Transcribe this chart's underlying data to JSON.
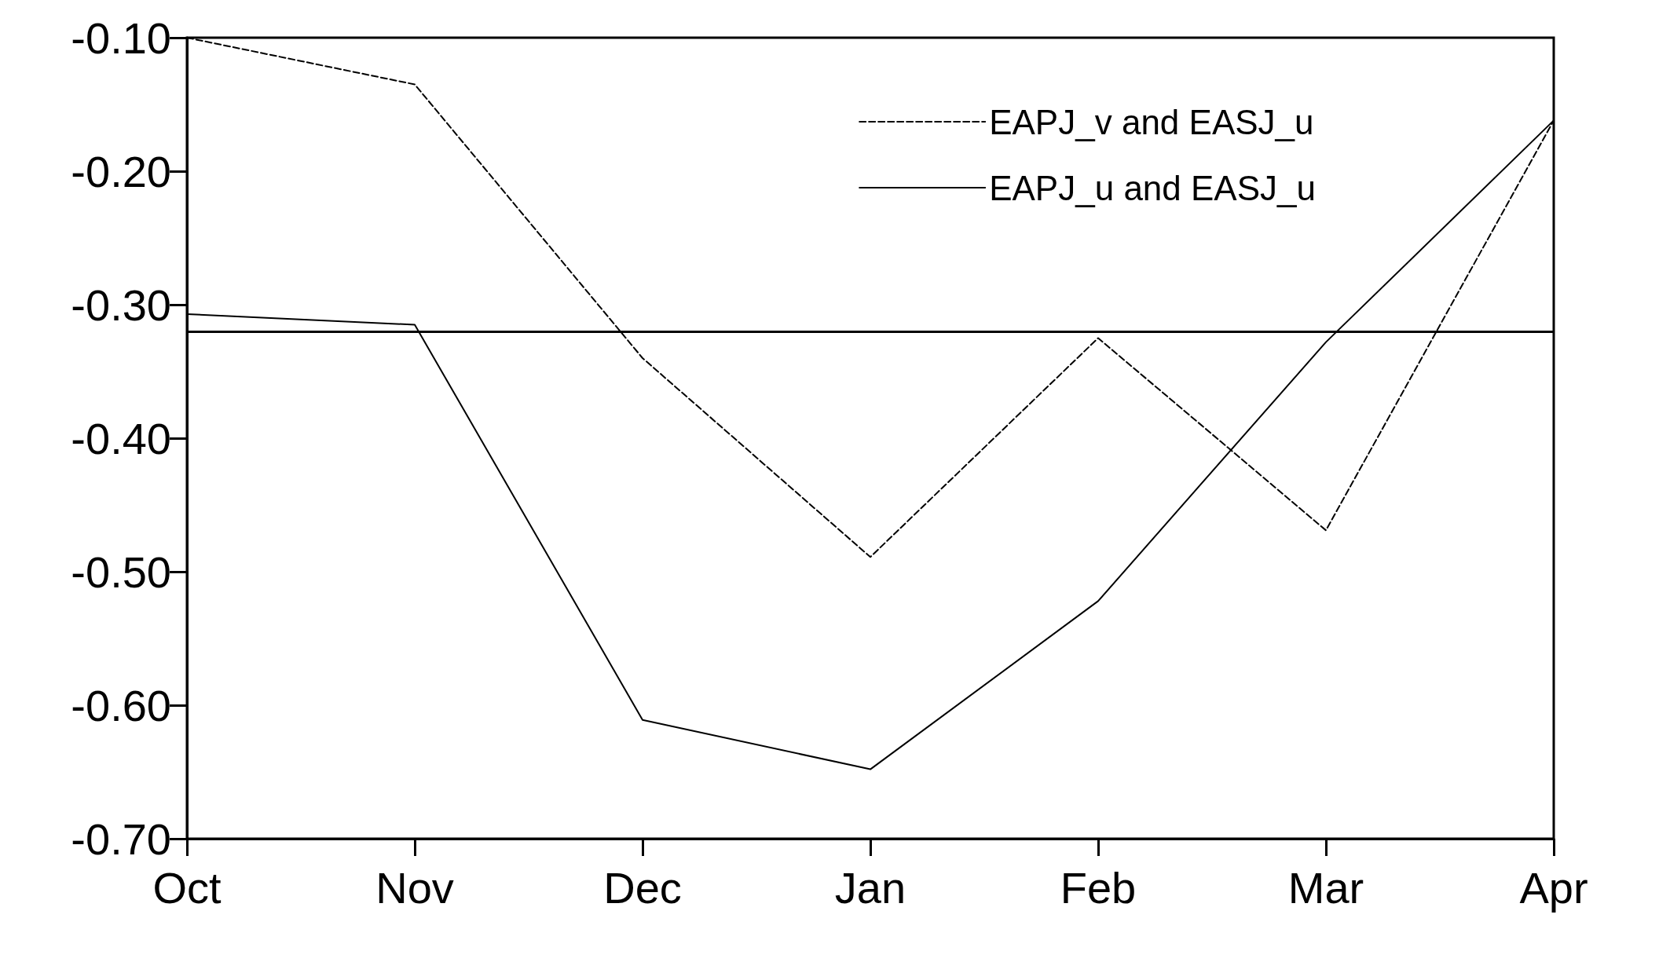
{
  "chart_data": {
    "type": "line",
    "categories": [
      "Oct",
      "Nov",
      "Dec",
      "Jan",
      "Feb",
      "Mar",
      "Apr"
    ],
    "series": [
      {
        "name": "EAPJ_v and EASJ_u",
        "color": "#000000",
        "line_style": "dashed",
        "values": [
          -0.1,
          -0.135,
          -0.34,
          -0.489,
          -0.325,
          -0.469,
          -0.162
        ]
      },
      {
        "name": "EAPJ_u and EASJ_u",
        "color": "#000000",
        "line_style": "solid",
        "values": [
          -0.307,
          -0.315,
          -0.611,
          -0.648,
          -0.522,
          -0.328,
          -0.162
        ]
      }
    ],
    "ylim": [
      -0.7,
      -0.1
    ],
    "yticks": [
      {
        "value": -0.7,
        "label": "-0.70"
      },
      {
        "value": -0.6,
        "label": "-0.60"
      },
      {
        "value": -0.5,
        "label": "-0.50"
      },
      {
        "value": -0.4,
        "label": "-0.40"
      },
      {
        "value": -0.3,
        "label": "-0.30"
      },
      {
        "value": -0.2,
        "label": "-0.20"
      },
      {
        "value": -0.1,
        "label": "-0.10"
      }
    ],
    "ref_lines": [
      {
        "axis": "y",
        "value": -0.315,
        "color": "#000000",
        "line_style": "solid"
      }
    ],
    "grid": false,
    "legend": "top right",
    "marker": "none"
  }
}
